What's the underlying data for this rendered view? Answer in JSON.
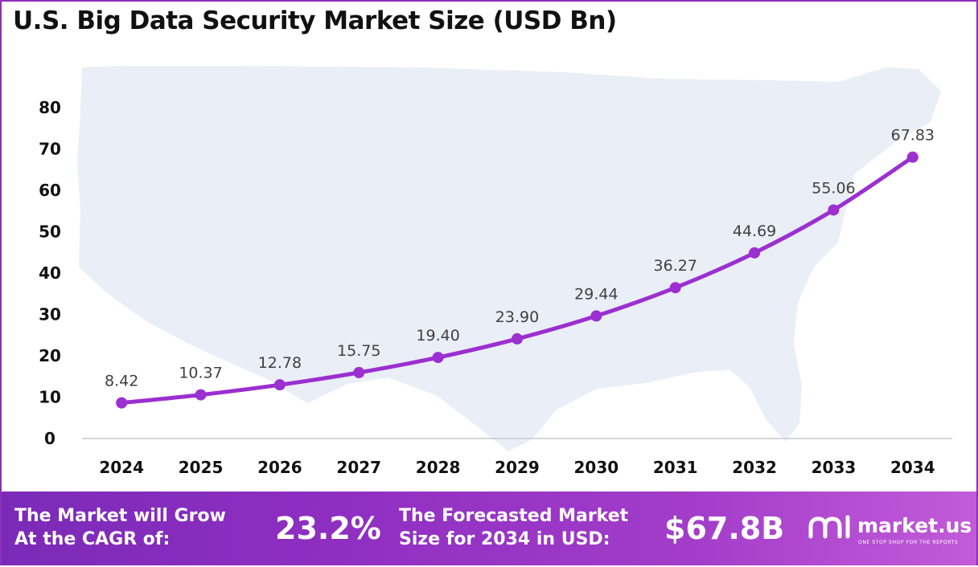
{
  "title": "U.S. Big Data Security Market Size (USD Bn)",
  "colors": {
    "line": "#9b2fd0",
    "marker": "#9b2fd0",
    "map": "#e9eef7",
    "footer_start": "#7b2ab8",
    "footer_end": "#c25bd8",
    "frame": "#8e2fb8"
  },
  "chart_data": {
    "type": "line",
    "title": "U.S. Big Data Security Market Size (USD Bn)",
    "categories": [
      "2024",
      "2025",
      "2026",
      "2027",
      "2028",
      "2029",
      "2030",
      "2031",
      "2032",
      "2033",
      "2034"
    ],
    "values": [
      8.42,
      10.37,
      12.78,
      15.75,
      19.4,
      23.9,
      29.44,
      36.27,
      44.69,
      55.06,
      67.83
    ],
    "value_labels": [
      "8.42",
      "10.37",
      "12.78",
      "15.75",
      "19.40",
      "23.90",
      "29.44",
      "36.27",
      "44.69",
      "55.06",
      "67.83"
    ],
    "ylim": [
      0,
      80
    ],
    "yticks": [
      "0",
      "10",
      "20",
      "30",
      "40",
      "50",
      "60",
      "70",
      "80"
    ],
    "grid": false,
    "legend": "none",
    "background_image": "us-map-silhouette"
  },
  "footer": {
    "cagr_label": "The Market will Grow\nAt the CAGR of:",
    "cagr_value": "23.2%",
    "forecast_label": "The Forecasted Market\nSize for 2034 in USD:",
    "forecast_value": "$67.8B"
  },
  "brand": {
    "name": "market.us",
    "tagline": "ONE STOP SHOP FOR THE REPORTS",
    "icon": "market-us-logo-icon"
  }
}
